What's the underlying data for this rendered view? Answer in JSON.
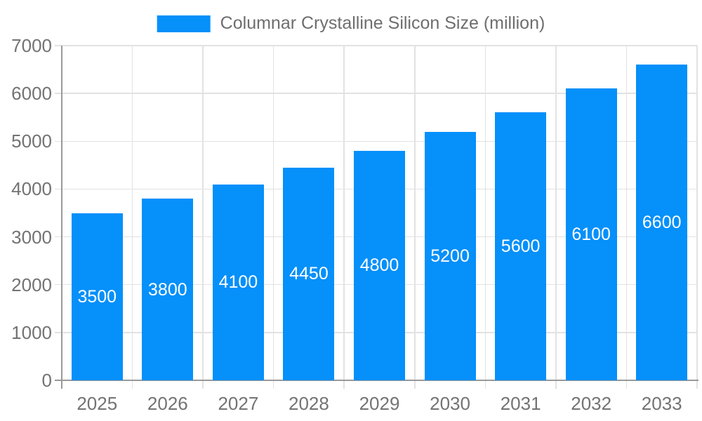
{
  "chart_data": {
    "type": "bar",
    "categories": [
      "2025",
      "2026",
      "2027",
      "2028",
      "2029",
      "2030",
      "2031",
      "2032",
      "2033"
    ],
    "series": [
      {
        "name": "Columnar Crystalline Silicon Size (million)",
        "values": [
          3500,
          3800,
          4100,
          4450,
          4800,
          5200,
          5600,
          6100,
          6600
        ]
      }
    ],
    "title": "",
    "xlabel": "",
    "ylabel": "",
    "ylim": [
      0,
      7000
    ],
    "yticks": [
      0,
      1000,
      2000,
      3000,
      4000,
      5000,
      6000,
      7000
    ],
    "grid": true,
    "legend_position": "top",
    "bar_value_labels_shown": true,
    "colors": {
      "bar": "#0590fa",
      "bar_value_label": "#ffffff",
      "axis_text": "#737373",
      "legend_text": "#6e6e6e",
      "grid_line": "#e2e2e2",
      "axis_line": "#999999",
      "background": "#ffffff"
    }
  }
}
